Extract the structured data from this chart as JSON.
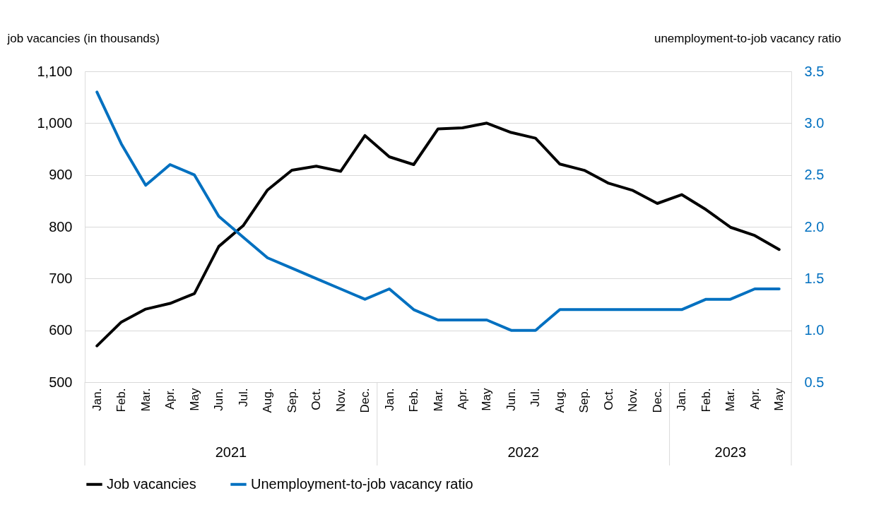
{
  "chart_data": {
    "type": "line",
    "ylabel": "job vacancies (in thousands)",
    "y2label": "unemployment-to-job vacancy ratio",
    "categories": [
      "Jan.",
      "Feb.",
      "Mar.",
      "Apr.",
      "May",
      "Jun.",
      "Jul.",
      "Aug.",
      "Sep.",
      "Oct.",
      "Nov.",
      "Dec.",
      "Jan.",
      "Feb.",
      "Mar.",
      "Apr.",
      "May",
      "Jun.",
      "Jul.",
      "Aug.",
      "Sep.",
      "Oct.",
      "Nov.",
      "Dec.",
      "Jan.",
      "Feb.",
      "Mar.",
      "Apr.",
      "May"
    ],
    "annotations": [
      "2021",
      "2022",
      "2023"
    ],
    "series": [
      {
        "name": "Job vacancies",
        "color": "#000000",
        "values": [
          570,
          616,
          641,
          652,
          671,
          762,
          802,
          871,
          909,
          917,
          907,
          976,
          935,
          920,
          989,
          991,
          1000,
          982,
          971,
          921,
          909,
          884,
          870,
          845,
          862,
          833,
          799,
          783,
          756
        ]
      },
      {
        "name": "Unemployment-to-job vacancy ratio",
        "color": "#0070c0",
        "axis": "y2",
        "values": [
          3.3,
          2.8,
          2.4,
          2.6,
          2.5,
          2.1,
          1.9,
          1.7,
          1.6,
          1.5,
          1.4,
          1.3,
          1.4,
          1.2,
          1.1,
          1.1,
          1.1,
          1.0,
          1.0,
          1.2,
          1.2,
          1.2,
          1.2,
          1.2,
          1.2,
          1.3,
          1.3,
          1.4,
          1.4
        ]
      }
    ],
    "ylim": [
      500,
      1100
    ],
    "yticks": [
      {
        "value": 500,
        "label": "500"
      },
      {
        "value": 600,
        "label": "600"
      },
      {
        "value": 700,
        "label": "700"
      },
      {
        "value": 800,
        "label": "800"
      },
      {
        "value": 900,
        "label": "900"
      },
      {
        "value": 1000,
        "label": "1,000"
      },
      {
        "value": 1100,
        "label": "1,100"
      }
    ],
    "y2lim": [
      0.5,
      3.5
    ],
    "y2ticks": [
      {
        "value": 0.5,
        "label": "0.5"
      },
      {
        "value": 1.0,
        "label": "1.0"
      },
      {
        "value": 1.5,
        "label": "1.5"
      },
      {
        "value": 2.0,
        "label": "2.0"
      },
      {
        "value": 2.5,
        "label": "2.5"
      },
      {
        "value": 3.0,
        "label": "3.0"
      },
      {
        "value": 3.5,
        "label": "3.5"
      }
    ],
    "grid": "y",
    "legend": "bottom",
    "line_style": "solid",
    "marker": "none"
  }
}
